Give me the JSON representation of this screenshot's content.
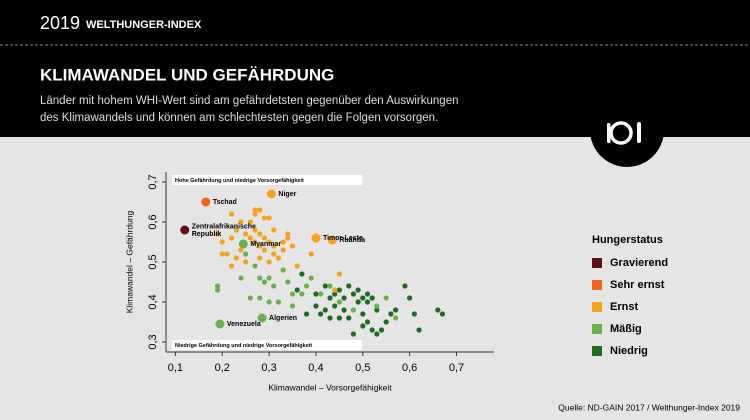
{
  "header": {
    "year": "2019",
    "brand": "WELTHUNGER-INDEX",
    "title": "KLIMAWANDEL UND GEFÄHRDUNG",
    "subtitle": [
      "Länder mit hohem WHI-Wert sind am gefährdetsten gegenüber den Auswirkungen",
      "des Klimawandels und können am schlechtesten gegen die Folgen vorsorgen."
    ]
  },
  "chart_data": {
    "type": "scatter",
    "x_label": "Klimawandel – Vorsorgefähigkeit",
    "y_label": "Klimawandel – Gefährdung",
    "annotations": [
      "Hohe Gefährdung und niedrige Vorsorgefähigkeit",
      "Niedrige Gefährdung und niedrige Vorsorgefähigkeit"
    ],
    "legend_title": "Hungerstatus",
    "legend": "right",
    "xlim": [
      0.08,
      0.78
    ],
    "ylim": [
      0.275,
      0.725
    ],
    "xticks": [
      {
        "value": 0.1,
        "label": "0,1"
      },
      {
        "value": 0.2,
        "label": "0,2"
      },
      {
        "value": 0.3,
        "label": "0,3"
      },
      {
        "value": 0.4,
        "label": "0,4"
      },
      {
        "value": 0.5,
        "label": "0,5"
      },
      {
        "value": 0.6,
        "label": "0,6"
      },
      {
        "value": 0.7,
        "label": "0,7"
      }
    ],
    "yticks": [
      {
        "value": 0.3,
        "label": "0,3"
      },
      {
        "value": 0.4,
        "label": "0,4"
      },
      {
        "value": 0.5,
        "label": "0,5"
      },
      {
        "value": 0.6,
        "label": "0,6"
      },
      {
        "value": 0.7,
        "label": "0,7"
      }
    ],
    "series": [
      {
        "name": "Gravierend",
        "color": "#5a1015",
        "x": [
          0.12
        ],
        "values": [
          0.58
        ],
        "labels": [
          [
            "Zentralafrikanische",
            "Republik"
          ]
        ]
      },
      {
        "name": "Sehr ernst",
        "color": "#f0641e",
        "x": [
          0.165
        ],
        "values": [
          0.65
        ],
        "labels": [
          "Tschad"
        ]
      },
      {
        "name": "Ernst",
        "color": "#f6a21c",
        "x": [
          0.305,
          0.4,
          0.435,
          0.22,
          0.24,
          0.27,
          0.28,
          0.29,
          0.23,
          0.25,
          0.26,
          0.27,
          0.28,
          0.29,
          0.3,
          0.31,
          0.33,
          0.22,
          0.2,
          0.19,
          0.21,
          0.23,
          0.25,
          0.28,
          0.29,
          0.31,
          0.27,
          0.28,
          0.33,
          0.35,
          0.22,
          0.27,
          0.45,
          0.44,
          0.39,
          0.34,
          0.31,
          0.3,
          0.26,
          0.24,
          0.2,
          0.3,
          0.32,
          0.36,
          0.34
        ],
        "values": [
          0.67,
          0.56,
          0.555,
          0.62,
          0.6,
          0.62,
          0.63,
          0.61,
          0.58,
          0.57,
          0.56,
          0.58,
          0.57,
          0.56,
          0.55,
          0.54,
          0.53,
          0.56,
          0.55,
          0.57,
          0.52,
          0.51,
          0.5,
          0.54,
          0.53,
          0.52,
          0.55,
          0.51,
          0.55,
          0.54,
          0.49,
          0.63,
          0.47,
          0.43,
          0.52,
          0.56,
          0.58,
          0.61,
          0.6,
          0.53,
          0.52,
          0.5,
          0.51,
          0.49,
          0.57
        ],
        "labels": [
          "Niger",
          "Timor-Leste",
          "Ruanda",
          null,
          null,
          null,
          null,
          null,
          null,
          null,
          null,
          null,
          null,
          null,
          null,
          null,
          null,
          null,
          null,
          null,
          null,
          null,
          null,
          null,
          null,
          null,
          null,
          null,
          null,
          null,
          null,
          null,
          null,
          null,
          null,
          null,
          null,
          null,
          null,
          null,
          null,
          null,
          null,
          null,
          null
        ]
      },
      {
        "name": "Mäßig",
        "color": "#6ab04c",
        "x": [
          0.245,
          0.195,
          0.285,
          0.19,
          0.19,
          0.25,
          0.27,
          0.28,
          0.3,
          0.31,
          0.33,
          0.34,
          0.35,
          0.28,
          0.3,
          0.26,
          0.32,
          0.37,
          0.39,
          0.38,
          0.43,
          0.45,
          0.48,
          0.53,
          0.55,
          0.57,
          0.35,
          0.29,
          0.41,
          0.24
        ],
        "values": [
          0.545,
          0.345,
          0.36,
          0.43,
          0.44,
          0.52,
          0.49,
          0.46,
          0.46,
          0.44,
          0.48,
          0.45,
          0.42,
          0.41,
          0.4,
          0.41,
          0.4,
          0.42,
          0.46,
          0.44,
          0.44,
          0.4,
          0.38,
          0.39,
          0.41,
          0.36,
          0.39,
          0.45,
          0.42,
          0.46
        ],
        "labels": [
          "Myanmar",
          "Venezuela",
          "Algerien",
          null,
          null,
          null,
          null,
          null,
          null,
          null,
          null,
          null,
          null,
          null,
          null,
          null,
          null,
          null,
          null,
          null,
          null,
          null,
          null,
          null,
          null,
          null,
          null,
          null,
          null,
          null
        ]
      },
      {
        "name": "Niedrig",
        "color": "#1e6b22",
        "x": [
          0.37,
          0.4,
          0.42,
          0.43,
          0.44,
          0.45,
          0.46,
          0.47,
          0.48,
          0.49,
          0.5,
          0.51,
          0.52,
          0.53,
          0.5,
          0.46,
          0.44,
          0.42,
          0.41,
          0.43,
          0.47,
          0.51,
          0.52,
          0.54,
          0.55,
          0.57,
          0.59,
          0.6,
          0.61,
          0.62,
          0.66,
          0.67,
          0.5,
          0.53,
          0.38,
          0.4,
          0.36,
          0.45,
          0.48,
          0.56,
          0.49,
          0.51
        ],
        "values": [
          0.47,
          0.42,
          0.44,
          0.41,
          0.42,
          0.43,
          0.41,
          0.44,
          0.42,
          0.4,
          0.41,
          0.4,
          0.41,
          0.38,
          0.37,
          0.38,
          0.39,
          0.38,
          0.37,
          0.36,
          0.36,
          0.35,
          0.33,
          0.33,
          0.35,
          0.38,
          0.44,
          0.41,
          0.37,
          0.33,
          0.38,
          0.37,
          0.34,
          0.32,
          0.37,
          0.39,
          0.43,
          0.36,
          0.32,
          0.37,
          0.43,
          0.42
        ],
        "labels": [
          null,
          null,
          null,
          null,
          null,
          null,
          null,
          null,
          null,
          null,
          null,
          null,
          null,
          null,
          null,
          null,
          null,
          null,
          null,
          null,
          null,
          null,
          null,
          null,
          null,
          null,
          null,
          null,
          null,
          null,
          null,
          null,
          null,
          null,
          null,
          null,
          null,
          null,
          null,
          null,
          null,
          null
        ]
      }
    ]
  },
  "source": "Quelle: ND-GAIN 2017 / Welthunger-Index 2019"
}
